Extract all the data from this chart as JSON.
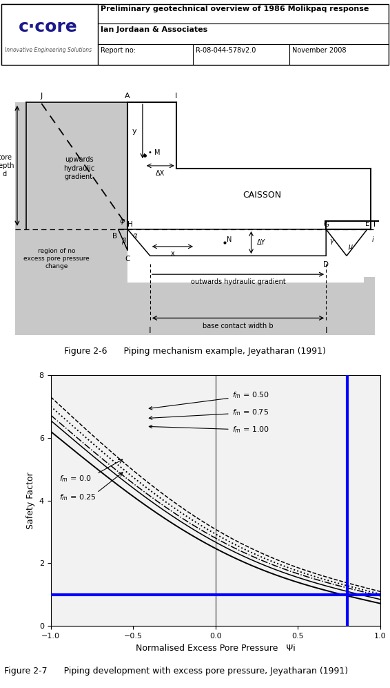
{
  "header": {
    "logo_text": "c·core",
    "logo_sub": "Innovative Engineering Solutions",
    "title_line1": "Preliminary geotechnical overview of 1986 Molikpaq response",
    "title_line2": "Ian Jordaan & Associates",
    "report_label": "Report no:",
    "report_no": "R-08-044-578v2.0",
    "date": "November 2008"
  },
  "fig26_caption": "Figure 2-6      Piping mechanism example, Jeyatharan (1991)",
  "fig27_caption": "Figure 2-7      Piping development with excess pore pressure, Jeyatharan (1991)",
  "plot": {
    "xlim": [
      -1.0,
      1.0
    ],
    "ylim": [
      0,
      8
    ],
    "xlabel": "Normalised Excess Pore Pressure   Ψi",
    "ylabel": "Safety Factor",
    "xticks": [
      -1.0,
      -0.5,
      0.0,
      0.5,
      1.0
    ],
    "yticks": [
      0,
      2,
      4,
      6,
      8
    ],
    "blue_hline_y": 1.0,
    "blue_vline_x": 0.8,
    "gray_vline_x": 0.0
  },
  "curves": [
    {
      "fm": "0.0",
      "style": "-",
      "lw": 1.4,
      "y0": 6.2,
      "y1": 0.72
    },
    {
      "fm": "0.25",
      "style": "-",
      "lw": 1.1,
      "y0": 6.55,
      "y1": 0.85
    },
    {
      "fm": "0.50",
      "style": "--",
      "lw": 1.1,
      "y0": 7.3,
      "y1": 1.1
    },
    {
      "fm": "0.75",
      "style": ":",
      "lw": 1.4,
      "y0": 7.0,
      "y1": 1.02
    },
    {
      "fm": "1.00",
      "style": "-.",
      "lw": 1.1,
      "y0": 6.72,
      "y1": 0.96
    }
  ],
  "bg_color": "#ffffff"
}
